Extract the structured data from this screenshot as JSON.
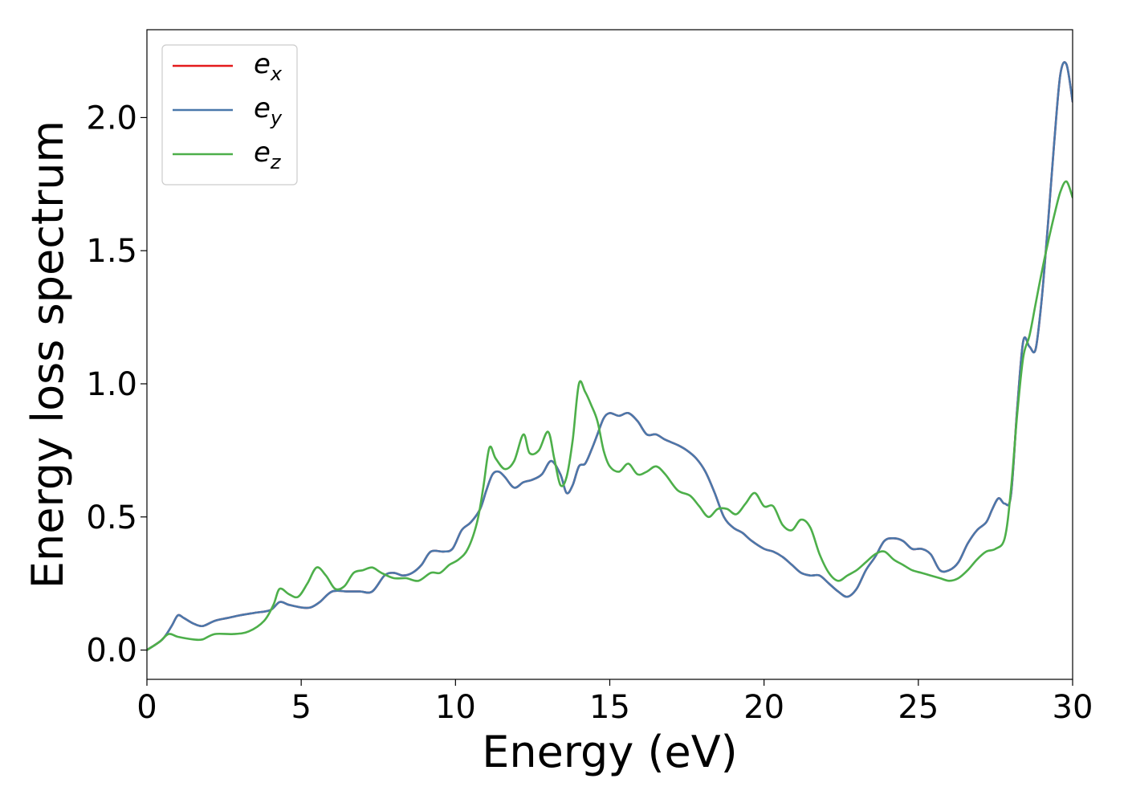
{
  "chart_data": {
    "type": "line",
    "title": "",
    "xlabel": "Energy (eV)",
    "ylabel": "Energy loss spectrum",
    "xlim": [
      0,
      30
    ],
    "ylim": [
      -0.11,
      2.33
    ],
    "xticks": [
      0,
      5,
      10,
      15,
      20,
      25,
      30
    ],
    "xtick_labels": [
      "0",
      "5",
      "10",
      "15",
      "20",
      "25",
      "30"
    ],
    "yticks": [
      0.0,
      0.5,
      1.0,
      1.5,
      2.0
    ],
    "ytick_labels": [
      "0.0",
      "0.5",
      "1.0",
      "1.5",
      "2.0"
    ],
    "grid": false,
    "legend_position": "top-left",
    "series": [
      {
        "name": "e_x",
        "legend_base": "e",
        "legend_sub": "x",
        "color": "#e41a1c",
        "x": [
          0,
          0.5,
          0.8,
          1.0,
          1.2,
          1.5,
          1.8,
          2.2,
          2.6,
          3.0,
          3.5,
          4.0,
          4.3,
          4.6,
          5.0,
          5.3,
          5.6,
          6.0,
          6.5,
          6.9,
          7.3,
          7.7,
          8.0,
          8.3,
          8.6,
          8.9,
          9.2,
          9.6,
          9.9,
          10.2,
          10.5,
          10.8,
          11.0,
          11.2,
          11.4,
          11.6,
          11.9,
          12.2,
          12.5,
          12.8,
          13.1,
          13.4,
          13.6,
          13.8,
          14.0,
          14.2,
          14.4,
          14.6,
          14.8,
          15.0,
          15.3,
          15.6,
          15.9,
          16.2,
          16.5,
          16.8,
          17.2,
          17.5,
          17.8,
          18.1,
          18.4,
          18.7,
          19.0,
          19.3,
          19.6,
          20.0,
          20.3,
          20.6,
          20.9,
          21.2,
          21.5,
          21.8,
          22.1,
          22.4,
          22.7,
          23.0,
          23.3,
          23.6,
          23.9,
          24.2,
          24.5,
          24.8,
          25.1,
          25.4,
          25.7,
          26.0,
          26.3,
          26.6,
          26.9,
          27.2,
          27.4,
          27.6,
          27.8,
          28.0,
          28.2,
          28.4,
          28.6,
          28.8,
          29.0,
          29.2,
          29.4,
          29.6,
          29.8,
          30.0
        ],
        "y": [
          0.0,
          0.04,
          0.09,
          0.13,
          0.12,
          0.1,
          0.09,
          0.11,
          0.12,
          0.13,
          0.14,
          0.15,
          0.18,
          0.17,
          0.16,
          0.16,
          0.18,
          0.22,
          0.22,
          0.22,
          0.22,
          0.28,
          0.29,
          0.28,
          0.29,
          0.32,
          0.37,
          0.37,
          0.38,
          0.45,
          0.48,
          0.53,
          0.6,
          0.66,
          0.67,
          0.65,
          0.61,
          0.63,
          0.64,
          0.66,
          0.71,
          0.66,
          0.59,
          0.62,
          0.69,
          0.7,
          0.75,
          0.81,
          0.87,
          0.89,
          0.88,
          0.89,
          0.86,
          0.81,
          0.81,
          0.79,
          0.77,
          0.75,
          0.72,
          0.67,
          0.59,
          0.5,
          0.46,
          0.44,
          0.41,
          0.38,
          0.37,
          0.35,
          0.32,
          0.29,
          0.28,
          0.28,
          0.25,
          0.22,
          0.2,
          0.23,
          0.3,
          0.35,
          0.41,
          0.42,
          0.41,
          0.38,
          0.38,
          0.36,
          0.3,
          0.3,
          0.33,
          0.4,
          0.45,
          0.48,
          0.53,
          0.57,
          0.55,
          0.58,
          0.9,
          1.16,
          1.14,
          1.13,
          1.32,
          1.6,
          1.9,
          2.16,
          2.2,
          2.06
        ]
      },
      {
        "name": "e_y",
        "legend_base": "e",
        "legend_sub": "y",
        "color": "#4a78ab",
        "x": [
          0,
          0.5,
          0.8,
          1.0,
          1.2,
          1.5,
          1.8,
          2.2,
          2.6,
          3.0,
          3.5,
          4.0,
          4.3,
          4.6,
          5.0,
          5.3,
          5.6,
          6.0,
          6.5,
          6.9,
          7.3,
          7.7,
          8.0,
          8.3,
          8.6,
          8.9,
          9.2,
          9.6,
          9.9,
          10.2,
          10.5,
          10.8,
          11.0,
          11.2,
          11.4,
          11.6,
          11.9,
          12.2,
          12.5,
          12.8,
          13.1,
          13.4,
          13.6,
          13.8,
          14.0,
          14.2,
          14.4,
          14.6,
          14.8,
          15.0,
          15.3,
          15.6,
          15.9,
          16.2,
          16.5,
          16.8,
          17.2,
          17.5,
          17.8,
          18.1,
          18.4,
          18.7,
          19.0,
          19.3,
          19.6,
          20.0,
          20.3,
          20.6,
          20.9,
          21.2,
          21.5,
          21.8,
          22.1,
          22.4,
          22.7,
          23.0,
          23.3,
          23.6,
          23.9,
          24.2,
          24.5,
          24.8,
          25.1,
          25.4,
          25.7,
          26.0,
          26.3,
          26.6,
          26.9,
          27.2,
          27.4,
          27.6,
          27.8,
          28.0,
          28.2,
          28.4,
          28.6,
          28.8,
          29.0,
          29.2,
          29.4,
          29.6,
          29.8,
          30.0
        ],
        "y": [
          0.0,
          0.04,
          0.09,
          0.13,
          0.12,
          0.1,
          0.09,
          0.11,
          0.12,
          0.13,
          0.14,
          0.15,
          0.18,
          0.17,
          0.16,
          0.16,
          0.18,
          0.22,
          0.22,
          0.22,
          0.22,
          0.28,
          0.29,
          0.28,
          0.29,
          0.32,
          0.37,
          0.37,
          0.38,
          0.45,
          0.48,
          0.53,
          0.6,
          0.66,
          0.67,
          0.65,
          0.61,
          0.63,
          0.64,
          0.66,
          0.71,
          0.66,
          0.59,
          0.62,
          0.69,
          0.7,
          0.75,
          0.81,
          0.87,
          0.89,
          0.88,
          0.89,
          0.86,
          0.81,
          0.81,
          0.79,
          0.77,
          0.75,
          0.72,
          0.67,
          0.59,
          0.5,
          0.46,
          0.44,
          0.41,
          0.38,
          0.37,
          0.35,
          0.32,
          0.29,
          0.28,
          0.28,
          0.25,
          0.22,
          0.2,
          0.23,
          0.3,
          0.35,
          0.41,
          0.42,
          0.41,
          0.38,
          0.38,
          0.36,
          0.3,
          0.3,
          0.33,
          0.4,
          0.45,
          0.48,
          0.53,
          0.57,
          0.55,
          0.58,
          0.9,
          1.16,
          1.14,
          1.13,
          1.32,
          1.6,
          1.9,
          2.16,
          2.2,
          2.06
        ]
      },
      {
        "name": "e_z",
        "legend_base": "e",
        "legend_sub": "z",
        "color": "#4daf4a",
        "x": [
          0,
          0.4,
          0.7,
          1.0,
          1.5,
          1.8,
          2.2,
          2.8,
          3.3,
          3.8,
          4.1,
          4.3,
          4.6,
          4.9,
          5.2,
          5.5,
          5.8,
          6.1,
          6.4,
          6.7,
          7.0,
          7.3,
          7.6,
          8.0,
          8.4,
          8.8,
          9.2,
          9.5,
          9.8,
          10.1,
          10.4,
          10.7,
          10.9,
          11.1,
          11.3,
          11.6,
          11.9,
          12.2,
          12.4,
          12.7,
          13.0,
          13.2,
          13.4,
          13.6,
          13.8,
          14.0,
          14.2,
          14.4,
          14.6,
          14.8,
          15.0,
          15.3,
          15.6,
          15.9,
          16.2,
          16.5,
          16.8,
          17.2,
          17.6,
          17.9,
          18.2,
          18.5,
          18.8,
          19.1,
          19.4,
          19.7,
          20.0,
          20.3,
          20.6,
          20.9,
          21.2,
          21.5,
          21.8,
          22.1,
          22.4,
          22.7,
          23.0,
          23.3,
          23.6,
          23.9,
          24.2,
          24.5,
          24.8,
          25.1,
          25.4,
          25.7,
          26.0,
          26.3,
          26.6,
          26.9,
          27.2,
          27.5,
          27.8,
          28.0,
          28.2,
          28.4,
          28.6,
          28.8,
          29.0,
          29.2,
          29.4,
          29.6,
          29.8,
          30.0
        ],
        "y": [
          0.0,
          0.03,
          0.06,
          0.05,
          0.04,
          0.04,
          0.06,
          0.06,
          0.07,
          0.11,
          0.17,
          0.23,
          0.21,
          0.2,
          0.25,
          0.31,
          0.28,
          0.23,
          0.24,
          0.29,
          0.3,
          0.31,
          0.29,
          0.27,
          0.27,
          0.26,
          0.29,
          0.29,
          0.32,
          0.34,
          0.38,
          0.48,
          0.61,
          0.76,
          0.72,
          0.68,
          0.71,
          0.81,
          0.74,
          0.75,
          0.82,
          0.72,
          0.62,
          0.65,
          0.79,
          1.0,
          0.97,
          0.92,
          0.86,
          0.75,
          0.69,
          0.67,
          0.7,
          0.66,
          0.67,
          0.69,
          0.66,
          0.6,
          0.58,
          0.54,
          0.5,
          0.53,
          0.53,
          0.51,
          0.55,
          0.59,
          0.54,
          0.54,
          0.47,
          0.45,
          0.49,
          0.46,
          0.36,
          0.29,
          0.26,
          0.28,
          0.3,
          0.33,
          0.36,
          0.37,
          0.34,
          0.32,
          0.3,
          0.29,
          0.28,
          0.27,
          0.26,
          0.27,
          0.3,
          0.34,
          0.37,
          0.38,
          0.42,
          0.6,
          0.88,
          1.1,
          1.18,
          1.3,
          1.42,
          1.53,
          1.63,
          1.72,
          1.76,
          1.7
        ]
      }
    ]
  }
}
